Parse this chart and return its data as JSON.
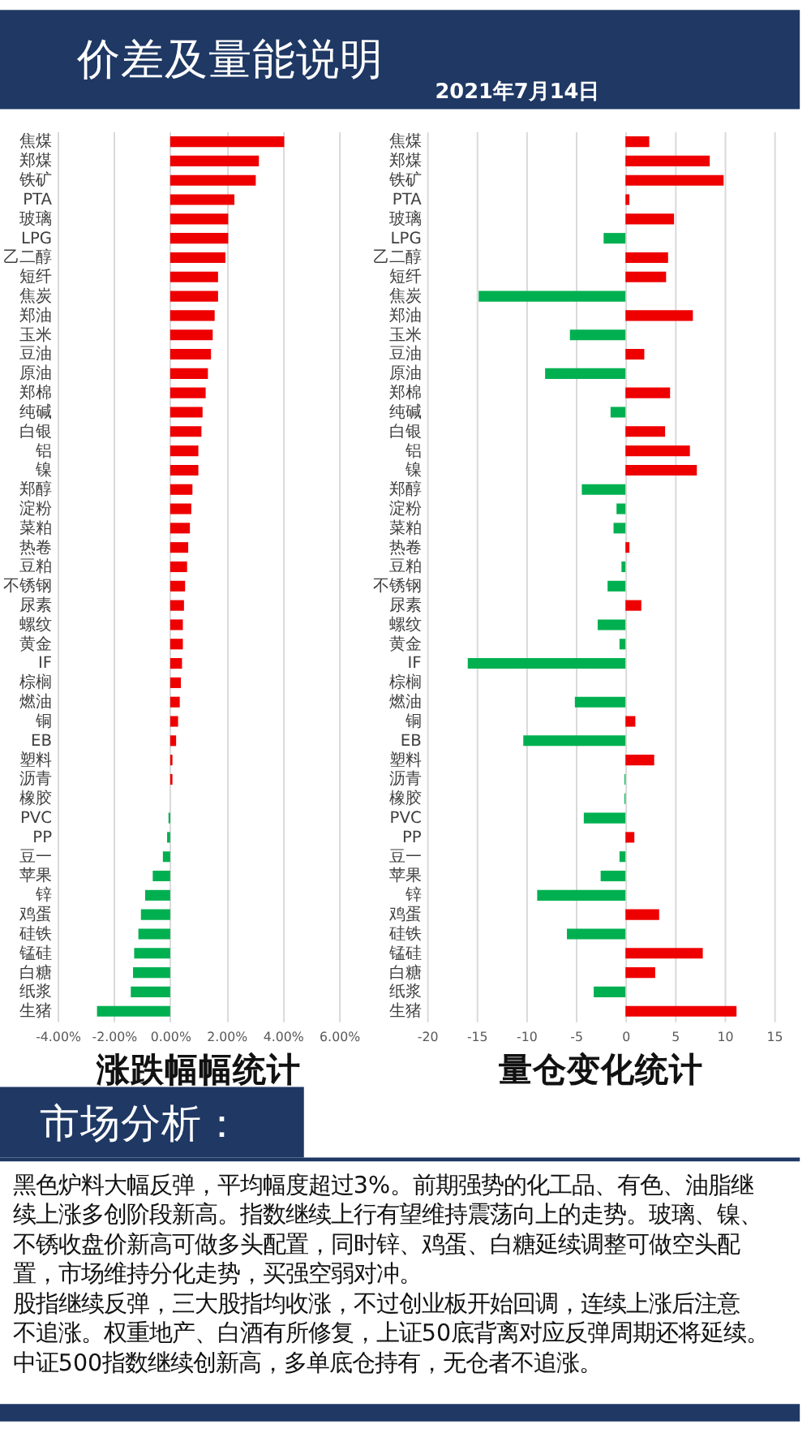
{
  "chart_data": [
    {
      "type": "other",
      "title": "价差及量能说明",
      "subtitle": "2021年7月14日"
    },
    {
      "type": "bar",
      "orientation": "horizontal",
      "title": "涨跌幅幅统计",
      "categories": [
        "焦煤",
        "郑煤",
        "铁矿",
        "PTA",
        "玻璃",
        "LPG",
        "乙二醇",
        "短纤",
        "焦炭",
        "郑油",
        "玉米",
        "豆油",
        "原油",
        "郑棉",
        "纯碱",
        "白银",
        "铝",
        "镍",
        "郑醇",
        "淀粉",
        "菜粕",
        "热卷",
        "豆粕",
        "不锈钢",
        "尿素",
        "螺纹",
        "黄金",
        "IF",
        "棕榈",
        "燃油",
        "铜",
        "EB",
        "塑料",
        "沥青",
        "橡胶",
        "PVC",
        "PP",
        "豆一",
        "苹果",
        "锌",
        "鸡蛋",
        "硅铁",
        "锰硅",
        "白糖",
        "纸浆",
        "生猪"
      ],
      "values": [
        4.05,
        3.15,
        3.04,
        2.28,
        2.06,
        2.06,
        1.96,
        1.7,
        1.7,
        1.58,
        1.51,
        1.45,
        1.34,
        1.26,
        1.15,
        1.11,
        1.0,
        1.0,
        0.79,
        0.75,
        0.7,
        0.64,
        0.6,
        0.53,
        0.49,
        0.45,
        0.45,
        0.42,
        0.38,
        0.34,
        0.28,
        0.21,
        0.08,
        0.08,
        0,
        -0.06,
        -0.11,
        -0.26,
        -0.62,
        -0.89,
        -1.04,
        -1.13,
        -1.28,
        -1.32,
        -1.4,
        -2.6
      ],
      "colors": [
        "#ee0000",
        "#ee0000",
        "#ee0000",
        "#ee0000",
        "#ee0000",
        "#ee0000",
        "#ee0000",
        "#ee0000",
        "#ee0000",
        "#ee0000",
        "#ee0000",
        "#ee0000",
        "#ee0000",
        "#ee0000",
        "#ee0000",
        "#ee0000",
        "#ee0000",
        "#ee0000",
        "#ee0000",
        "#ee0000",
        "#ee0000",
        "#ee0000",
        "#ee0000",
        "#ee0000",
        "#ee0000",
        "#ee0000",
        "#ee0000",
        "#ee0000",
        "#ee0000",
        "#ee0000",
        "#ee0000",
        "#ee0000",
        "#ee0000",
        "#ee0000",
        "#ee0000",
        "#00b050",
        "#00b050",
        "#00b050",
        "#00b050",
        "#00b050",
        "#00b050",
        "#00b050",
        "#00b050",
        "#00b050",
        "#00b050",
        "#00b050"
      ],
      "xlim": [
        -4,
        6
      ],
      "xticks": [
        {
          "value": -4,
          "label": "-4.00%"
        },
        {
          "value": -2,
          "label": "-2.00%"
        },
        {
          "value": 0,
          "label": "0.00%"
        },
        {
          "value": 2,
          "label": "2.00%"
        },
        {
          "value": 4,
          "label": "4.00%"
        },
        {
          "value": 6,
          "label": "6.00%"
        }
      ],
      "grid": "x"
    },
    {
      "type": "bar",
      "orientation": "horizontal",
      "title": "量仓变化统计",
      "categories": [
        "焦煤",
        "郑煤",
        "铁矿",
        "PTA",
        "玻璃",
        "LPG",
        "乙二醇",
        "短纤",
        "焦炭",
        "郑油",
        "玉米",
        "豆油",
        "原油",
        "郑棉",
        "纯碱",
        "白银",
        "铝",
        "镍",
        "郑醇",
        "淀粉",
        "菜粕",
        "热卷",
        "豆粕",
        "不锈钢",
        "尿素",
        "螺纹",
        "黄金",
        "IF",
        "棕榈",
        "燃油",
        "铜",
        "EB",
        "塑料",
        "沥青",
        "橡胶",
        "PVC",
        "PP",
        "豆一",
        "苹果",
        "锌",
        "鸡蛋",
        "硅铁",
        "锰硅",
        "白糖",
        "纸浆",
        "生猪"
      ],
      "values": [
        2.4,
        8.5,
        9.9,
        0.4,
        4.9,
        -2.2,
        4.3,
        4.1,
        -14.8,
        6.8,
        -5.6,
        1.9,
        -8.1,
        4.5,
        -1.5,
        4.0,
        6.5,
        7.2,
        -4.4,
        -0.9,
        -1.2,
        0.4,
        -0.4,
        -1.8,
        1.6,
        -2.8,
        -0.6,
        -15.9,
        null,
        -5.1,
        1.0,
        -10.3,
        2.9,
        -0.1,
        -0.1,
        -4.2,
        0.9,
        -0.6,
        -2.5,
        -8.9,
        3.4,
        -5.9,
        7.8,
        3.0,
        -3.2,
        11.2
      ],
      "colors": [
        "#ee0000",
        "#ee0000",
        "#ee0000",
        "#ee0000",
        "#ee0000",
        "#00b050",
        "#ee0000",
        "#ee0000",
        "#00b050",
        "#ee0000",
        "#00b050",
        "#ee0000",
        "#00b050",
        "#ee0000",
        "#00b050",
        "#ee0000",
        "#ee0000",
        "#ee0000",
        "#00b050",
        "#00b050",
        "#00b050",
        "#ee0000",
        "#00b050",
        "#00b050",
        "#ee0000",
        "#00b050",
        "#00b050",
        "#00b050",
        null,
        "#00b050",
        "#ee0000",
        "#00b050",
        "#ee0000",
        "#00b050",
        "#00b050",
        "#00b050",
        "#ee0000",
        "#00b050",
        "#00b050",
        "#00b050",
        "#ee0000",
        "#00b050",
        "#ee0000",
        "#ee0000",
        "#00b050",
        "#ee0000"
      ],
      "xlim": [
        -20,
        15
      ],
      "xticks": [
        -20,
        -15,
        -10,
        -5,
        0,
        5,
        10,
        15
      ],
      "grid": "x"
    },
    {
      "type": "other",
      "title": "市场分析：",
      "annotations": [
        "黑色炉料大幅反弹，平均幅度超过3%。前期强势的化工品、有色、油脂继续上涨多创阶段新高。指数继续上行有望维持震荡向上的走势。玻璃、镍、不锈收盘价新高可做多头配置，同时锌、鸡蛋、白糖延续调整可做空头配置，市场维持分化走势，买强空弱对冲。",
        "股指继续反弹，三大股指均收涨，不过创业板开始回调，连续上涨后注意不追涨。权重地产、白酒有所修复，上证50底背离对应反弹周期还将延续。中证500指数继续创新高，多单底仓持有，无仓者不追涨。"
      ]
    }
  ]
}
